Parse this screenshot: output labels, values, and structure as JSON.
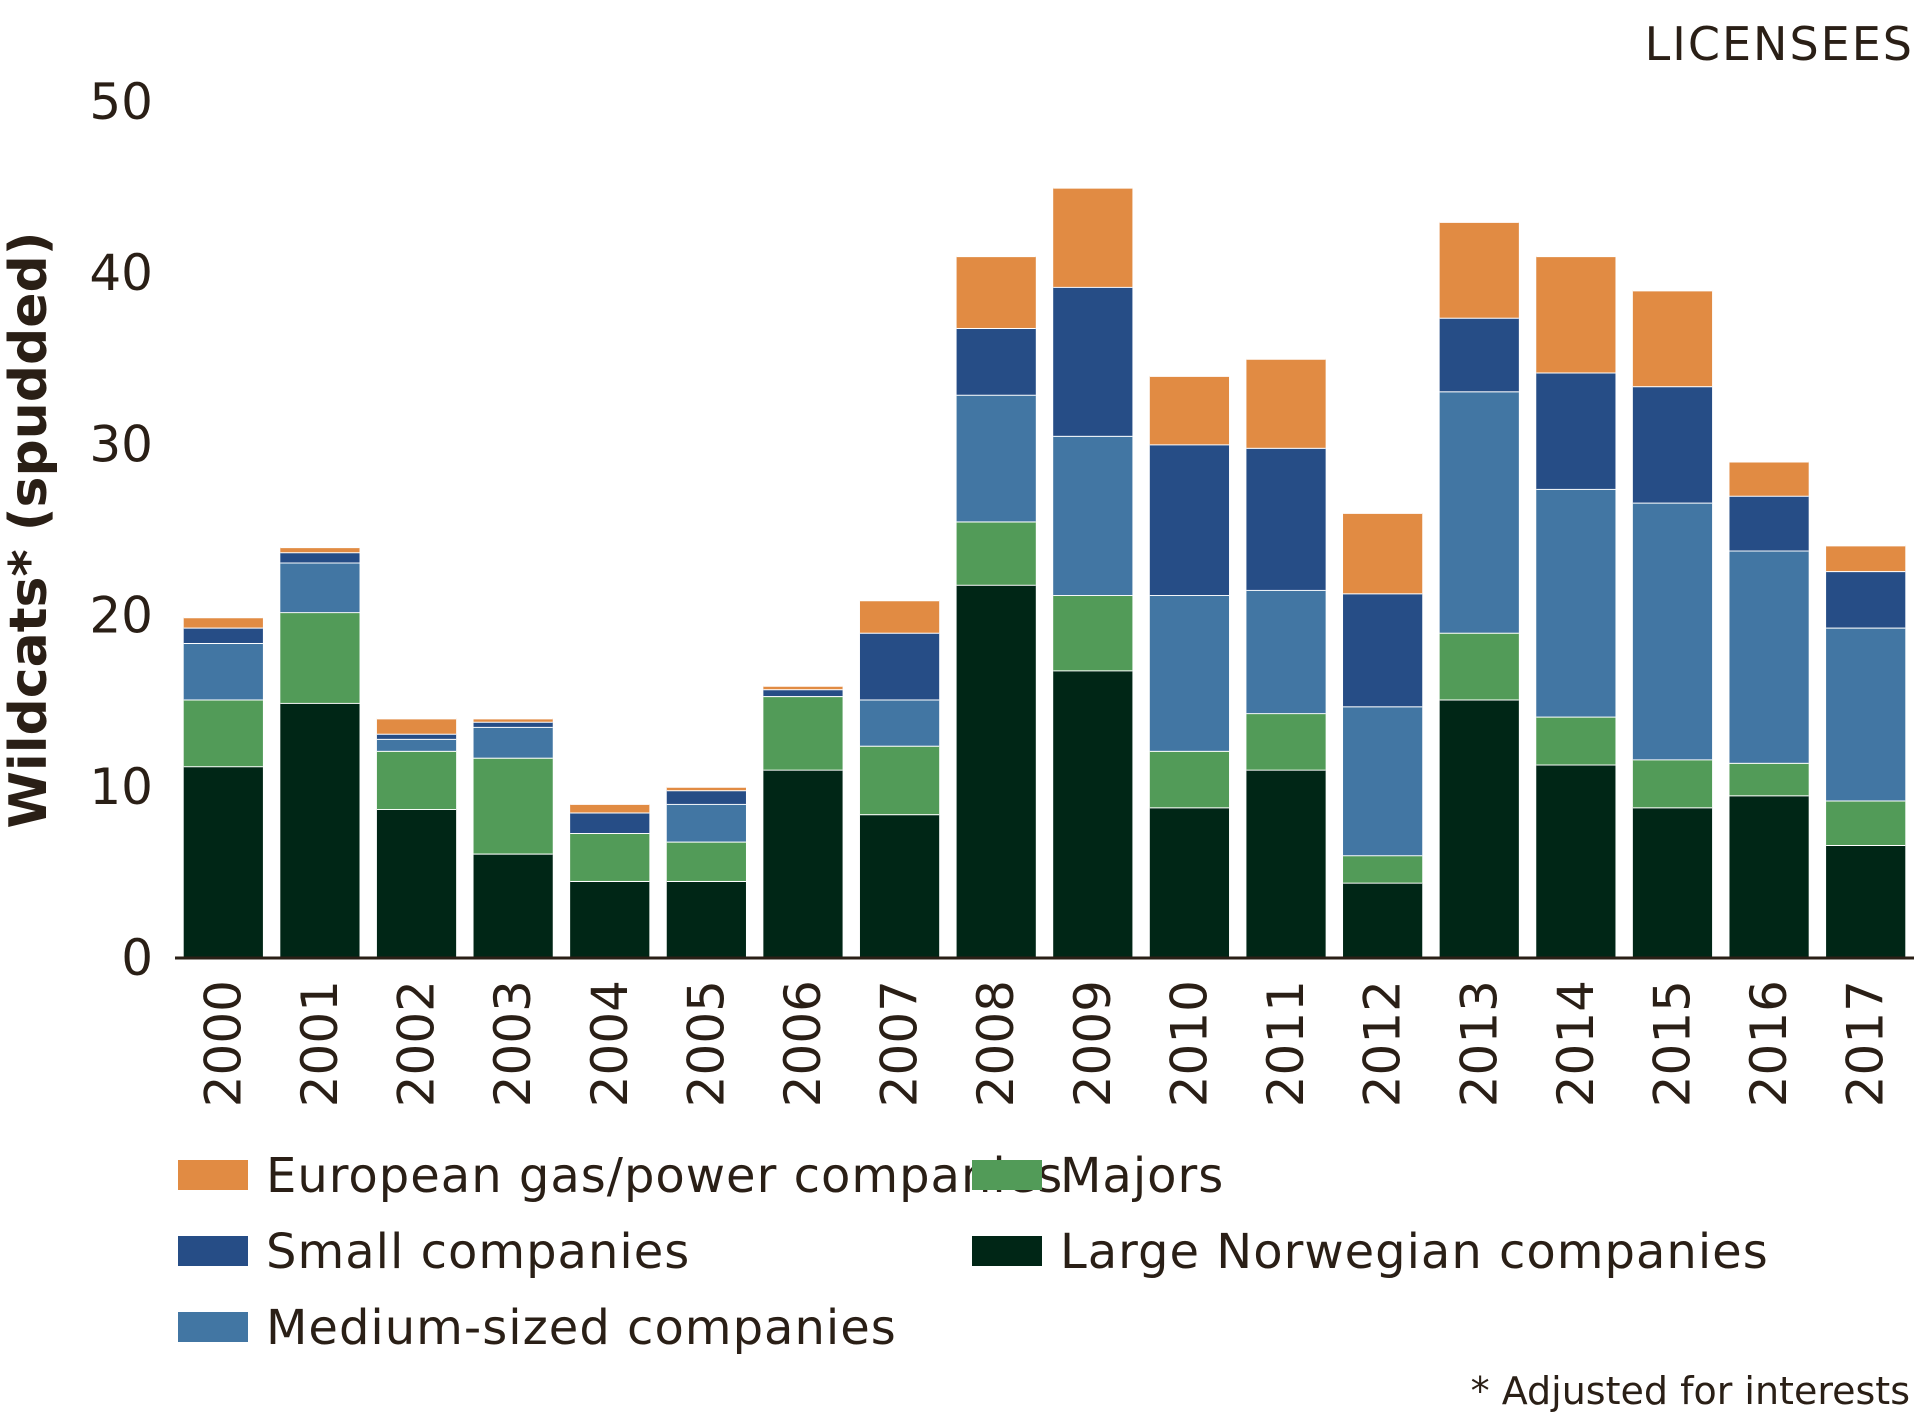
{
  "chart_data": {
    "type": "bar",
    "stacked": true,
    "title": "LICENSEES",
    "ylabel": "Wildcats* (spudded)",
    "xlabel": "",
    "ylim": [
      0,
      50
    ],
    "yticks": [
      0,
      10,
      20,
      30,
      40,
      50
    ],
    "grid": false,
    "legend_position": "bottom",
    "footnote": "* Adjusted for interests",
    "categories": [
      "2000",
      "2001",
      "2002",
      "2003",
      "2004",
      "2005",
      "2006",
      "2007",
      "2008",
      "2009",
      "2010",
      "2011",
      "2012",
      "2013",
      "2014",
      "2015",
      "2016",
      "2017"
    ],
    "series": [
      {
        "name": "Large Norwegian companies",
        "color": "#002616",
        "values": [
          11.2,
          14.9,
          8.7,
          6.1,
          4.5,
          4.5,
          11.0,
          8.4,
          21.8,
          16.8,
          8.8,
          11.0,
          4.4,
          15.1,
          11.3,
          8.8,
          9.5,
          6.6
        ]
      },
      {
        "name": "Majors",
        "color": "#529b58",
        "values": [
          3.9,
          5.3,
          3.4,
          5.6,
          2.8,
          2.3,
          4.3,
          4.0,
          3.7,
          4.4,
          3.3,
          3.3,
          1.6,
          3.9,
          2.8,
          2.8,
          1.9,
          2.6
        ]
      },
      {
        "name": "Medium-sized companies",
        "color": "#4276a3",
        "values": [
          3.3,
          2.9,
          0.7,
          1.8,
          0.0,
          2.2,
          0.0,
          2.7,
          7.4,
          9.3,
          9.1,
          7.2,
          8.7,
          14.1,
          13.3,
          15.0,
          12.4,
          10.1
        ]
      },
      {
        "name": "Small companies",
        "color": "#264d86",
        "values": [
          0.9,
          0.6,
          0.3,
          0.3,
          1.2,
          0.8,
          0.4,
          3.9,
          3.9,
          8.7,
          8.8,
          8.3,
          6.6,
          4.3,
          6.8,
          6.8,
          3.2,
          3.3
        ]
      },
      {
        "name": "European gas/power companies",
        "color": "#e18b43",
        "values": [
          0.6,
          0.3,
          0.9,
          0.2,
          0.5,
          0.2,
          0.2,
          1.9,
          4.2,
          5.8,
          4.0,
          5.2,
          4.7,
          5.6,
          6.8,
          5.6,
          2.0,
          1.5
        ]
      }
    ],
    "legend": [
      {
        "label": "European gas/power companies",
        "color": "#e18b43"
      },
      {
        "label": "Small companies",
        "color": "#264d86"
      },
      {
        "label": "Medium-sized companies",
        "color": "#4276a3"
      },
      {
        "label": "Majors",
        "color": "#529b58"
      },
      {
        "label": "Large Norwegian companies",
        "color": "#002616"
      }
    ]
  }
}
